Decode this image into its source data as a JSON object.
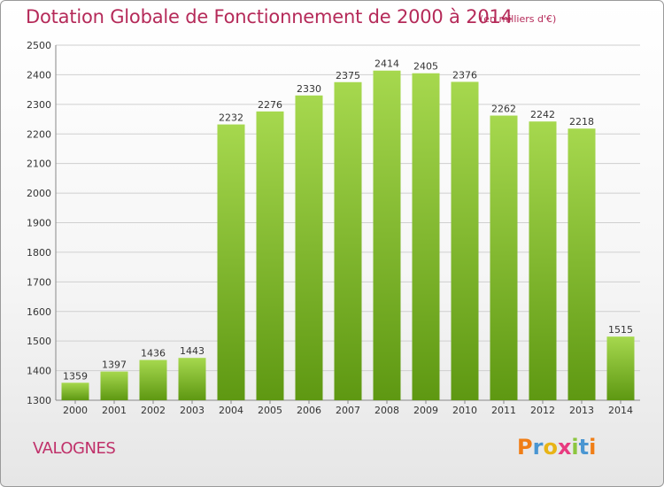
{
  "title": "Dotation Globale de Fonctionnement de 2000 à 2014",
  "subtitle": "(en milliers d'€)",
  "commune": "VALOGNES",
  "logo": {
    "letters": [
      "P",
      "r",
      "o",
      "x",
      "i",
      "t",
      "i"
    ],
    "colors": [
      "#f07e16",
      "#4a96d2",
      "#e8b416",
      "#e83a7f",
      "#8cc63f",
      "#4a96d2",
      "#f07e16"
    ]
  },
  "colors": {
    "bar_top": "#a6d84e",
    "bar_bottom": "#5e9812",
    "grid": "#cfcfcf",
    "title": "#b52a59"
  },
  "chart_data": {
    "type": "bar",
    "title": "Dotation Globale de Fonctionnement de 2000 à 2014",
    "xlabel": "",
    "ylabel": "",
    "categories": [
      "2000",
      "2001",
      "2002",
      "2003",
      "2004",
      "2005",
      "2006",
      "2007",
      "2008",
      "2009",
      "2010",
      "2011",
      "2012",
      "2013",
      "2014"
    ],
    "values": [
      1359,
      1397,
      1436,
      1443,
      2232,
      2276,
      2330,
      2375,
      2414,
      2405,
      2376,
      2262,
      2242,
      2218,
      1515
    ],
    "ylim": [
      1300,
      2500
    ],
    "yticks": [
      1300,
      1400,
      1500,
      1600,
      1700,
      1800,
      1900,
      2000,
      2100,
      2200,
      2300,
      2400,
      2500
    ],
    "grid": true,
    "data_labels": true
  }
}
